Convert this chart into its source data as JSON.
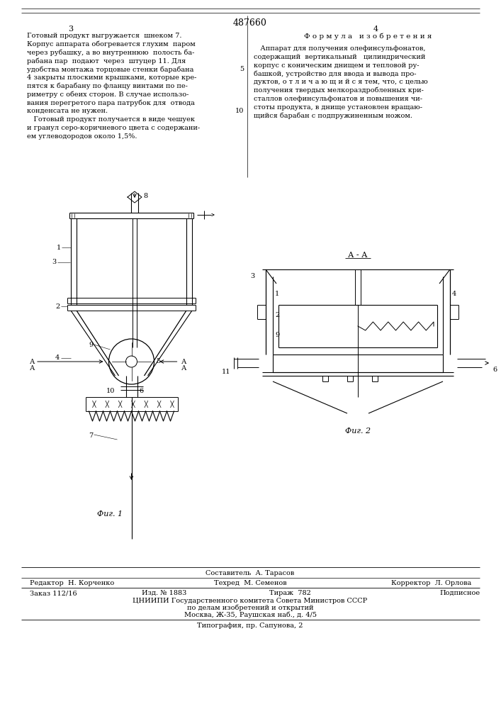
{
  "patent_number": "487660",
  "page_left": "3",
  "page_right": "4",
  "formula_title": "Ф о р м у л а   и з о б р е т е н и я",
  "left_text": [
    "Готовый продукт выгружается  шнеком 7.",
    "Корпус аппарата обогревается глухим  паром",
    "через рубашку, а во внутреннюю  полость ба-",
    "рабана пар  подают  через  штуцер 11. Для",
    "удобства монтажа торцовые стенки барабана",
    "4 закрыты плоскими крышками, которые кре-",
    "пятся к барабану по фланцу винтами по пе-",
    "риметру с обеих сторон. В случае использо-",
    "вания перегретого пара патрубок для  отвода",
    "конденсата не нужен.",
    "   Готовый продукт получается в виде чешуек",
    "и гранул серо-коричневого цвета с содержани-",
    "ем углеводородов около 1,5%."
  ],
  "right_text": [
    "   Аппарат для получения олефинсульфонатов,",
    "содержащий  вертикальный   цилиндрический",
    "корпус с коническим днищем и тепловой ру-",
    "башкой, устройство для ввода и вывода про-",
    "дуктов, о т л и ч а ю щ и й с я тем, что, с целью",
    "получения твердых мелкораздробленных кри-",
    "сталлов олефинсульфонатов и повышения чи-",
    "стоты продукта, в днище установлен вращаю-",
    "щийся барабан с подпружиненным ножом."
  ],
  "fig1_label": "Фиг. 1",
  "fig2_label": "Фиг. 2",
  "bottom_sostavitel": "Составитель  А. Тарасов",
  "bottom_editor": "Редактор  Н. Корченко",
  "bottom_tech": "Техред  М. Семенов",
  "bottom_corrector": "Корректор  Л. Орлова",
  "bottom_order": "Заказ 112/16",
  "bottom_izd": "Изд. № 1883",
  "bottom_tirazh": "Тираж  782",
  "bottom_podpisnoe": "Подписное",
  "bottom_tsniip": "ЦНИИПИ Государственного комитета Совета Министров СССР",
  "bottom_po_delam": "по делам изобретений и открытий",
  "bottom_moscow": "Москва, Ж-35, Раушская наб., д. 4/5",
  "bottom_tipografia": "Типография, пр. Сапунова, 2",
  "bg_color": "#ffffff",
  "text_color": "#000000"
}
